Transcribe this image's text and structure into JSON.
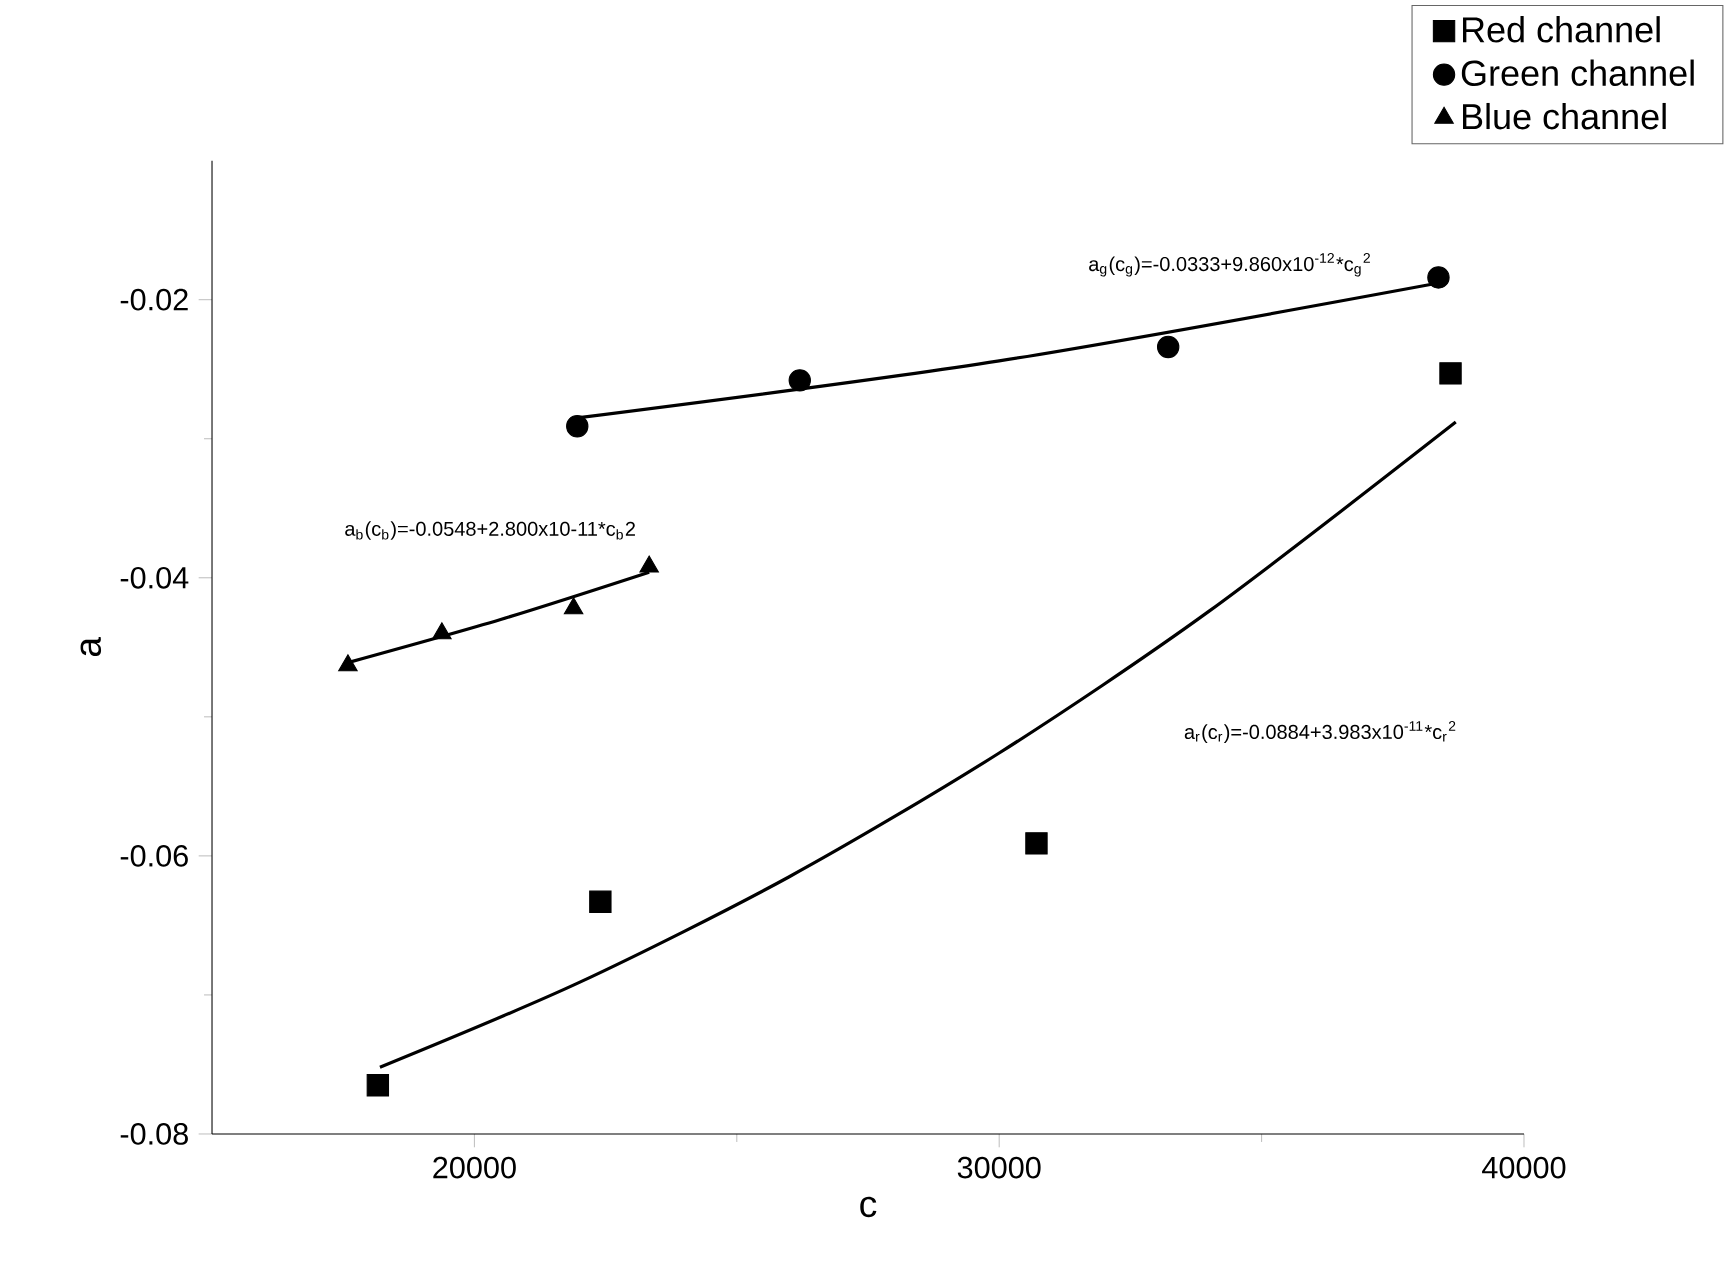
{
  "chart_data": {
    "type": "scatter",
    "xlabel": "c",
    "ylabel": "a",
    "xlim": [
      15000,
      40000
    ],
    "ylim": [
      -0.08,
      -0.01
    ],
    "xticks": [
      20000,
      30000,
      40000
    ],
    "yticks": [
      -0.08,
      -0.06,
      -0.04,
      -0.02
    ],
    "legend": "top right",
    "grid": false,
    "series": [
      {
        "name": "Red channel",
        "color": "#000000",
        "marker": "square",
        "x": [
          18160,
          22400,
          30710,
          38600
        ],
        "values": [
          -0.0765,
          -0.0633,
          -0.0591,
          -0.0253
        ]
      },
      {
        "name": "Green channel",
        "color": "#000000",
        "marker": "circle",
        "x": [
          21960,
          26200,
          33220,
          38370
        ],
        "values": [
          -0.0291,
          -0.0258,
          -0.0234,
          -0.0184
        ]
      },
      {
        "name": "Blue channel",
        "color": "#000000",
        "marker": "triangle",
        "x": [
          17590,
          19380,
          21890,
          23330
        ],
        "values": [
          -0.0463,
          -0.044,
          -0.0422,
          -0.0392
        ]
      },
      {
        "type": "line",
        "color": "#000000",
        "x": [
          18200,
          22000,
          26000,
          30000,
          34000,
          38700
        ],
        "values": [
          -0.0752,
          -0.0691,
          -0.0615,
          -0.0526,
          -0.0424,
          -0.0288
        ]
      },
      {
        "type": "line",
        "color": "#000000",
        "x": [
          21960,
          30000,
          38370
        ],
        "values": [
          -0.0285,
          -0.0244,
          -0.0188
        ]
      },
      {
        "type": "line",
        "color": "#000000",
        "x": [
          17590,
          20500,
          23330
        ],
        "values": [
          -0.0461,
          -0.043,
          -0.0396
        ]
      }
    ],
    "annotations": [
      "a$_{g}$(c$_{g}$)=-0.0333+9.860x10$^{-12}$*c$_{g}$$^{2}$",
      "a$_{b}$(c$_{b}$)=-0.0548+2.800x10-11*c$_{b}$2",
      "a$_{r}$(c$_{r}$)=-0.0884+3.983x10$^{-11}$*c$_{r}$$^{2}$"
    ]
  }
}
